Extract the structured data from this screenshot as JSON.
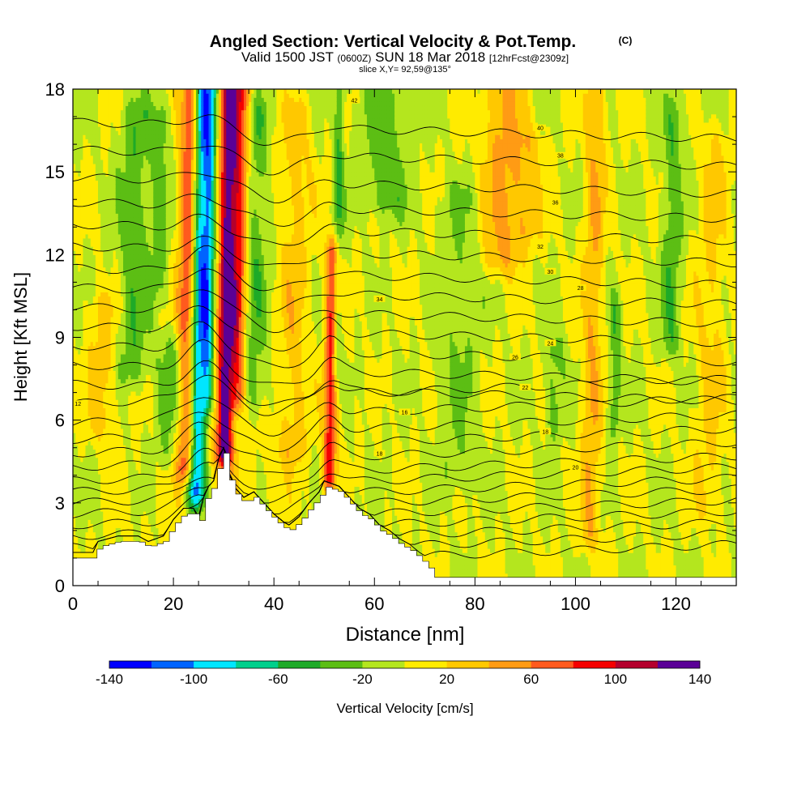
{
  "header": {
    "title": "Angled Section: Vertical Velocity & Pot.Temp.",
    "copyright": "(C)",
    "valid_prefix": "Valid 1500 JST",
    "valid_utc": "(0600Z)",
    "valid_date": "SUN 18 Mar 2018",
    "forecast": "[12hrFcst@2309z]",
    "slice": "slice X,Y= 92,59@135°"
  },
  "colors": {
    "terrain": "#ffffff",
    "contour": "#000000",
    "frame": "#000000"
  },
  "colorbar": {
    "label": "Vertical Velocity [cm/s]",
    "tick_labels": [
      "-140",
      "-100",
      "-60",
      "-20",
      "20",
      "60",
      "100",
      "140"
    ],
    "colors": [
      "#0000ff",
      "#0064ff",
      "#00e6ff",
      "#00d08c",
      "#1eaa28",
      "#5cbe14",
      "#b4e61e",
      "#ffeb00",
      "#ffc800",
      "#ff9b14",
      "#ff5a1e",
      "#f50000",
      "#b4002d",
      "#5a0096"
    ]
  },
  "chart_data": {
    "type": "heatmap",
    "title": "Angled Section: Vertical Velocity & Pot.Temp.",
    "xlabel": "Distance [nm]",
    "ylabel": "Height [Kft MSL]",
    "xlim": [
      0,
      132
    ],
    "ylim": [
      0,
      18
    ],
    "x_ticks": [
      "0",
      "20",
      "40",
      "60",
      "80",
      "100",
      "120"
    ],
    "y_ticks": [
      "0",
      "3",
      "6",
      "9",
      "12",
      "15",
      "18"
    ],
    "field": "Vertical Velocity [cm/s]",
    "value_range": [
      -140,
      140
    ],
    "contour_field": "Potential temperature",
    "features": [
      {
        "x": 25,
        "width": 1.8,
        "value": -120,
        "z_top": 18,
        "z_bottom": 3.5
      },
      {
        "x": 23,
        "width": 2.0,
        "value": 95,
        "z_top": 18,
        "z_bottom": 4.5
      },
      {
        "x": 27,
        "width": 1.2,
        "value": -70,
        "z_top": 18,
        "z_bottom": 7
      },
      {
        "x": 30.5,
        "width": 1.7,
        "value": 130,
        "z_top": 18,
        "z_bottom": 5
      },
      {
        "x": 33,
        "width": 1.8,
        "value": 80,
        "z_top": 18,
        "z_bottom": 7
      },
      {
        "x": 36,
        "width": 2.5,
        "value": -35,
        "z_top": 17,
        "z_bottom": 7
      },
      {
        "x": 51.5,
        "width": 1.3,
        "value": 90,
        "z_top": 12,
        "z_bottom": 4
      },
      {
        "x": 52.5,
        "width": 1.0,
        "value": -40,
        "z_top": 18,
        "z_bottom": 8
      },
      {
        "x": 44,
        "width": 3.0,
        "value": 30,
        "z_top": 17,
        "z_bottom": 5
      },
      {
        "x": 62,
        "width": 5.0,
        "value": -30,
        "z_top": 18,
        "z_bottom": 14
      },
      {
        "x": 12,
        "width": 3.0,
        "value": -35,
        "z_top": 17,
        "z_bottom": 8
      },
      {
        "x": 17,
        "width": 2.0,
        "value": -25,
        "z_top": 17,
        "z_bottom": 11
      },
      {
        "x": 20,
        "width": 3.5,
        "value": -30,
        "z_top": 8.5,
        "z_bottom": 5
      },
      {
        "x": 6,
        "width": 3.0,
        "value": 30,
        "z_top": 10,
        "z_bottom": 6
      },
      {
        "x": 85,
        "width": 4.0,
        "value": 45,
        "z_top": 18,
        "z_bottom": 12
      },
      {
        "x": 90,
        "width": 3.0,
        "value": 30,
        "z_top": 16,
        "z_bottom": 13
      },
      {
        "x": 96,
        "width": 2.0,
        "value": -30,
        "z_top": 8.5,
        "z_bottom": 6
      },
      {
        "x": 103.5,
        "width": 2.0,
        "value": 40,
        "z_top": 18,
        "z_bottom": 2
      },
      {
        "x": 108,
        "width": 1.2,
        "value": -35,
        "z_top": 10,
        "z_bottom": 6
      },
      {
        "x": 119,
        "width": 2.0,
        "value": -35,
        "z_top": 17,
        "z_bottom": 9
      },
      {
        "x": 127,
        "width": 3.0,
        "value": 25,
        "z_top": 16,
        "z_bottom": 3
      },
      {
        "x": 77,
        "width": 4.0,
        "value": -20,
        "z_top": 14,
        "z_bottom": 4
      },
      {
        "x": 30,
        "width": 14.0,
        "value": 12,
        "z_top": 5,
        "z_bottom": 1
      }
    ],
    "terrain_profile": {
      "x": [
        0,
        4,
        5,
        9,
        13,
        15,
        18,
        20,
        22,
        24,
        24.5,
        25,
        26,
        27,
        28,
        29,
        30,
        30.5,
        32,
        34,
        36,
        38,
        40,
        42,
        43,
        45,
        47,
        49,
        50,
        53,
        55,
        57,
        59,
        61,
        63,
        65,
        67,
        69,
        71,
        72,
        80,
        132
      ],
      "z": [
        1.0,
        1.0,
        1.4,
        1.6,
        1.6,
        1.4,
        1.6,
        2.2,
        2.6,
        2.6,
        2.0,
        2.2,
        3.0,
        3.4,
        3.6,
        4.4,
        4.8,
        4.2,
        3.4,
        3.0,
        3.2,
        2.8,
        2.4,
        2.1,
        2.0,
        2.3,
        2.8,
        3.2,
        3.6,
        3.4,
        3.0,
        2.6,
        2.4,
        2.0,
        1.8,
        1.5,
        1.3,
        1.0,
        0.6,
        0.3,
        0.3,
        0.3
      ]
    },
    "isentropes": {
      "count": 27,
      "z0_at_x0": [
        0.6,
        1.0,
        1.4,
        1.8,
        2.2,
        2.6,
        3.0,
        3.4,
        3.8,
        4.3,
        4.8,
        5.3,
        5.9,
        6.6,
        7.3,
        8.0,
        8.7,
        9.4,
        10.1,
        10.8,
        11.5,
        12.3,
        13.1,
        13.9,
        14.8,
        15.8,
        16.8
      ],
      "labels": [
        {
          "text": "12",
          "x": 1,
          "z": 6.6
        },
        {
          "text": "16",
          "x": 66,
          "z": 6.3
        },
        {
          "text": "18",
          "x": 61,
          "z": 4.8
        },
        {
          "text": "18",
          "x": 94,
          "z": 5.6
        },
        {
          "text": "20",
          "x": 100,
          "z": 4.3
        },
        {
          "text": "22",
          "x": 90,
          "z": 7.2
        },
        {
          "text": "24",
          "x": 95,
          "z": 8.8
        },
        {
          "text": "26",
          "x": 88,
          "z": 8.3
        },
        {
          "text": "28",
          "x": 101,
          "z": 10.8
        },
        {
          "text": "30",
          "x": 95,
          "z": 11.4
        },
        {
          "text": "32",
          "x": 93,
          "z": 12.3
        },
        {
          "text": "34",
          "x": 61,
          "z": 10.4
        },
        {
          "text": "36",
          "x": 96,
          "z": 13.9
        },
        {
          "text": "38",
          "x": 97,
          "z": 15.6
        },
        {
          "text": "40",
          "x": 93,
          "z": 16.6
        },
        {
          "text": "42",
          "x": 56,
          "z": 17.6
        }
      ]
    }
  }
}
